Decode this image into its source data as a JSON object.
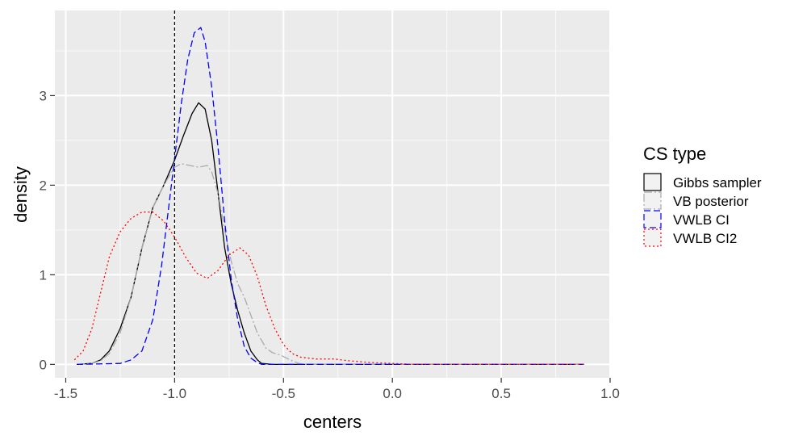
{
  "chart_data": {
    "type": "line",
    "subtype": "density",
    "xlabel": "centers",
    "ylabel": "density",
    "xlim": [
      -1.55,
      1.0
    ],
    "ylim": [
      -0.15,
      3.95
    ],
    "xticks": [
      -1.5,
      -1.0,
      -0.5,
      0.0,
      0.5,
      1.0
    ],
    "xtick_labels": [
      "-1.5",
      "-1.0",
      "-0.5",
      "0.0",
      "0.5",
      "1.0"
    ],
    "yticks": [
      0,
      1,
      2,
      3
    ],
    "ytick_labels": [
      "0",
      "1",
      "2",
      "3"
    ],
    "xminor": [
      -1.25,
      -0.75,
      -0.25,
      0.25,
      0.75
    ],
    "yminor": [
      0.5,
      1.5,
      2.5,
      3.5
    ],
    "grid": true,
    "vline": {
      "x": -1.0,
      "style": "dashed",
      "color": "#000000"
    },
    "legend": {
      "title": "CS type",
      "position": "right",
      "entries": [
        {
          "label": "Gibbs sampler",
          "color": "#000000",
          "dash": ""
        },
        {
          "label": "VB posterior",
          "color": "#aaaaaa",
          "dash": "10 3 2 3"
        },
        {
          "label": "VWLB CI",
          "color": "#0000ff",
          "dash": "8 4"
        },
        {
          "label": "VWLB CI2",
          "color": "#ff0000",
          "dash": "2 3"
        }
      ]
    },
    "series": [
      {
        "name": "Gibbs sampler",
        "color": "#000000",
        "dash": "",
        "points": [
          [
            -1.45,
            0
          ],
          [
            -1.38,
            0.01
          ],
          [
            -1.34,
            0.05
          ],
          [
            -1.3,
            0.15
          ],
          [
            -1.25,
            0.4
          ],
          [
            -1.2,
            0.75
          ],
          [
            -1.15,
            1.3
          ],
          [
            -1.1,
            1.75
          ],
          [
            -1.05,
            2.0
          ],
          [
            -1.0,
            2.28
          ],
          [
            -0.96,
            2.55
          ],
          [
            -0.92,
            2.8
          ],
          [
            -0.89,
            2.92
          ],
          [
            -0.86,
            2.85
          ],
          [
            -0.83,
            2.5
          ],
          [
            -0.8,
            1.9
          ],
          [
            -0.77,
            1.3
          ],
          [
            -0.74,
            0.9
          ],
          [
            -0.71,
            0.6
          ],
          [
            -0.68,
            0.35
          ],
          [
            -0.65,
            0.15
          ],
          [
            -0.62,
            0.05
          ],
          [
            -0.6,
            0.01
          ],
          [
            -0.55,
            0
          ],
          [
            0.88,
            0
          ]
        ]
      },
      {
        "name": "VB posterior",
        "color": "#aaaaaa",
        "dash": "10 3 2 3",
        "points": [
          [
            -1.45,
            0
          ],
          [
            -1.38,
            0.01
          ],
          [
            -1.34,
            0.04
          ],
          [
            -1.3,
            0.12
          ],
          [
            -1.25,
            0.35
          ],
          [
            -1.2,
            0.75
          ],
          [
            -1.15,
            1.3
          ],
          [
            -1.1,
            1.75
          ],
          [
            -1.05,
            2.0
          ],
          [
            -1.0,
            2.2
          ],
          [
            -0.97,
            2.24
          ],
          [
            -0.93,
            2.22
          ],
          [
            -0.89,
            2.2
          ],
          [
            -0.85,
            2.22
          ],
          [
            -0.83,
            2.15
          ],
          [
            -0.8,
            1.9
          ],
          [
            -0.77,
            1.5
          ],
          [
            -0.74,
            1.15
          ],
          [
            -0.71,
            0.9
          ],
          [
            -0.68,
            0.75
          ],
          [
            -0.65,
            0.55
          ],
          [
            -0.62,
            0.35
          ],
          [
            -0.58,
            0.18
          ],
          [
            -0.55,
            0.13
          ],
          [
            -0.51,
            0.1
          ],
          [
            -0.47,
            0.05
          ],
          [
            -0.43,
            0.01
          ],
          [
            -0.4,
            0
          ],
          [
            0.88,
            0
          ]
        ]
      },
      {
        "name": "VWLB CI",
        "color": "#0000ff",
        "dash": "8 4",
        "points": [
          [
            -1.45,
            0
          ],
          [
            -1.25,
            0.01
          ],
          [
            -1.2,
            0.05
          ],
          [
            -1.15,
            0.15
          ],
          [
            -1.1,
            0.5
          ],
          [
            -1.06,
            1.1
          ],
          [
            -1.03,
            1.7
          ],
          [
            -1.0,
            2.3
          ],
          [
            -0.97,
            2.9
          ],
          [
            -0.94,
            3.4
          ],
          [
            -0.91,
            3.7
          ],
          [
            -0.88,
            3.76
          ],
          [
            -0.86,
            3.6
          ],
          [
            -0.83,
            3.1
          ],
          [
            -0.8,
            2.4
          ],
          [
            -0.77,
            1.6
          ],
          [
            -0.74,
            0.95
          ],
          [
            -0.71,
            0.5
          ],
          [
            -0.68,
            0.2
          ],
          [
            -0.65,
            0.07
          ],
          [
            -0.62,
            0.02
          ],
          [
            -0.6,
            0
          ],
          [
            0.88,
            0
          ]
        ]
      },
      {
        "name": "VWLB CI2",
        "color": "#ff0000",
        "dash": "2 3",
        "points": [
          [
            -1.46,
            0.05
          ],
          [
            -1.42,
            0.15
          ],
          [
            -1.38,
            0.4
          ],
          [
            -1.34,
            0.8
          ],
          [
            -1.3,
            1.2
          ],
          [
            -1.25,
            1.48
          ],
          [
            -1.2,
            1.63
          ],
          [
            -1.15,
            1.7
          ],
          [
            -1.1,
            1.7
          ],
          [
            -1.05,
            1.6
          ],
          [
            -1.0,
            1.42
          ],
          [
            -0.95,
            1.2
          ],
          [
            -0.9,
            1.02
          ],
          [
            -0.85,
            0.96
          ],
          [
            -0.8,
            1.05
          ],
          [
            -0.75,
            1.22
          ],
          [
            -0.7,
            1.3
          ],
          [
            -0.66,
            1.22
          ],
          [
            -0.62,
            0.98
          ],
          [
            -0.58,
            0.65
          ],
          [
            -0.54,
            0.4
          ],
          [
            -0.5,
            0.22
          ],
          [
            -0.46,
            0.12
          ],
          [
            -0.42,
            0.08
          ],
          [
            -0.35,
            0.06
          ],
          [
            -0.27,
            0.06
          ],
          [
            -0.2,
            0.04
          ],
          [
            -0.1,
            0.02
          ],
          [
            0.0,
            0.01
          ],
          [
            0.1,
            0
          ],
          [
            0.88,
            0
          ]
        ]
      }
    ]
  }
}
